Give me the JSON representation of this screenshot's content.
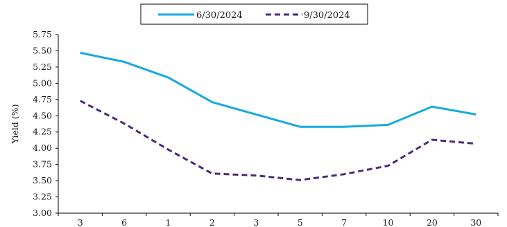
{
  "chart_data": {
    "type": "line",
    "categories": [
      "3",
      "6",
      "1",
      "2",
      "3",
      "5",
      "7",
      "10",
      "20",
      "30"
    ],
    "title": "",
    "xlabel": "",
    "ylabel": "Yield (%)",
    "ylim": [
      3.0,
      5.75
    ],
    "yticks": [
      "3.00",
      "3.25",
      "3.50",
      "3.75",
      "4.00",
      "4.25",
      "4.50",
      "4.75",
      "5.00",
      "5.25",
      "5.50",
      "5.75"
    ],
    "grid": false,
    "legend_position": "top-center",
    "series": [
      {
        "name": "6/30/2024",
        "color": "#17a9e1",
        "dash": "solid",
        "values": [
          5.47,
          5.33,
          5.09,
          4.71,
          4.52,
          4.33,
          4.33,
          4.36,
          4.64,
          4.52
        ]
      },
      {
        "name": "9/30/2024",
        "color": "#4b2c7a",
        "dash": "dashed",
        "values": [
          4.73,
          4.38,
          3.98,
          3.61,
          3.58,
          3.51,
          3.6,
          3.73,
          4.13,
          4.07
        ]
      }
    ]
  }
}
